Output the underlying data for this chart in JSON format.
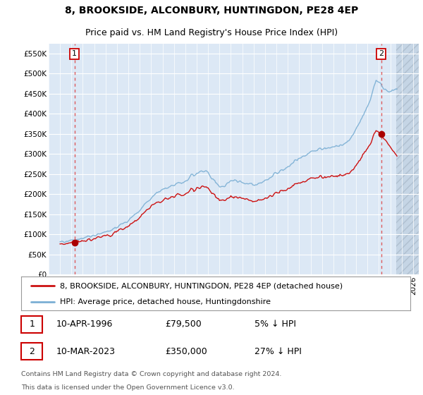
{
  "title": "8, BROOKSIDE, ALCONBURY, HUNTINGDON, PE28 4EP",
  "subtitle": "Price paid vs. HM Land Registry's House Price Index (HPI)",
  "ylim": [
    0,
    575000
  ],
  "xlim_left": 1994.0,
  "xlim_right": 2026.5,
  "ytick_values": [
    0,
    50000,
    100000,
    150000,
    200000,
    250000,
    300000,
    350000,
    400000,
    450000,
    500000,
    550000
  ],
  "ytick_labels": [
    "£0",
    "£50K",
    "£100K",
    "£150K",
    "£200K",
    "£250K",
    "£300K",
    "£350K",
    "£400K",
    "£450K",
    "£500K",
    "£550K"
  ],
  "hpi_color": "#7bafd4",
  "price_color": "#cc1111",
  "marker_color": "#aa0000",
  "vline_color": "#dd4444",
  "plot_bg_color": "#dce8f5",
  "hatch_color": "#c5d5e5",
  "grid_color": "#ffffff",
  "title_fontsize": 10,
  "subtitle_fontsize": 9,
  "legend_fontsize": 8,
  "tick_fontsize": 7.5,
  "sale1": {
    "date_num": 1996.27,
    "price": 79500,
    "label": "1",
    "date_str": "10-APR-1996",
    "pct": "5%"
  },
  "sale2": {
    "date_num": 2023.19,
    "price": 350000,
    "label": "2",
    "date_str": "10-MAR-2023",
    "pct": "27%"
  },
  "legend1": "8, BROOKSIDE, ALCONBURY, HUNTINGDON, PE28 4EP (detached house)",
  "legend2": "HPI: Average price, detached house, Huntingdonshire",
  "footer1": "Contains HM Land Registry data © Crown copyright and database right 2024.",
  "footer2": "This data is licensed under the Open Government Licence v3.0.",
  "data_end_year": 2024.5
}
